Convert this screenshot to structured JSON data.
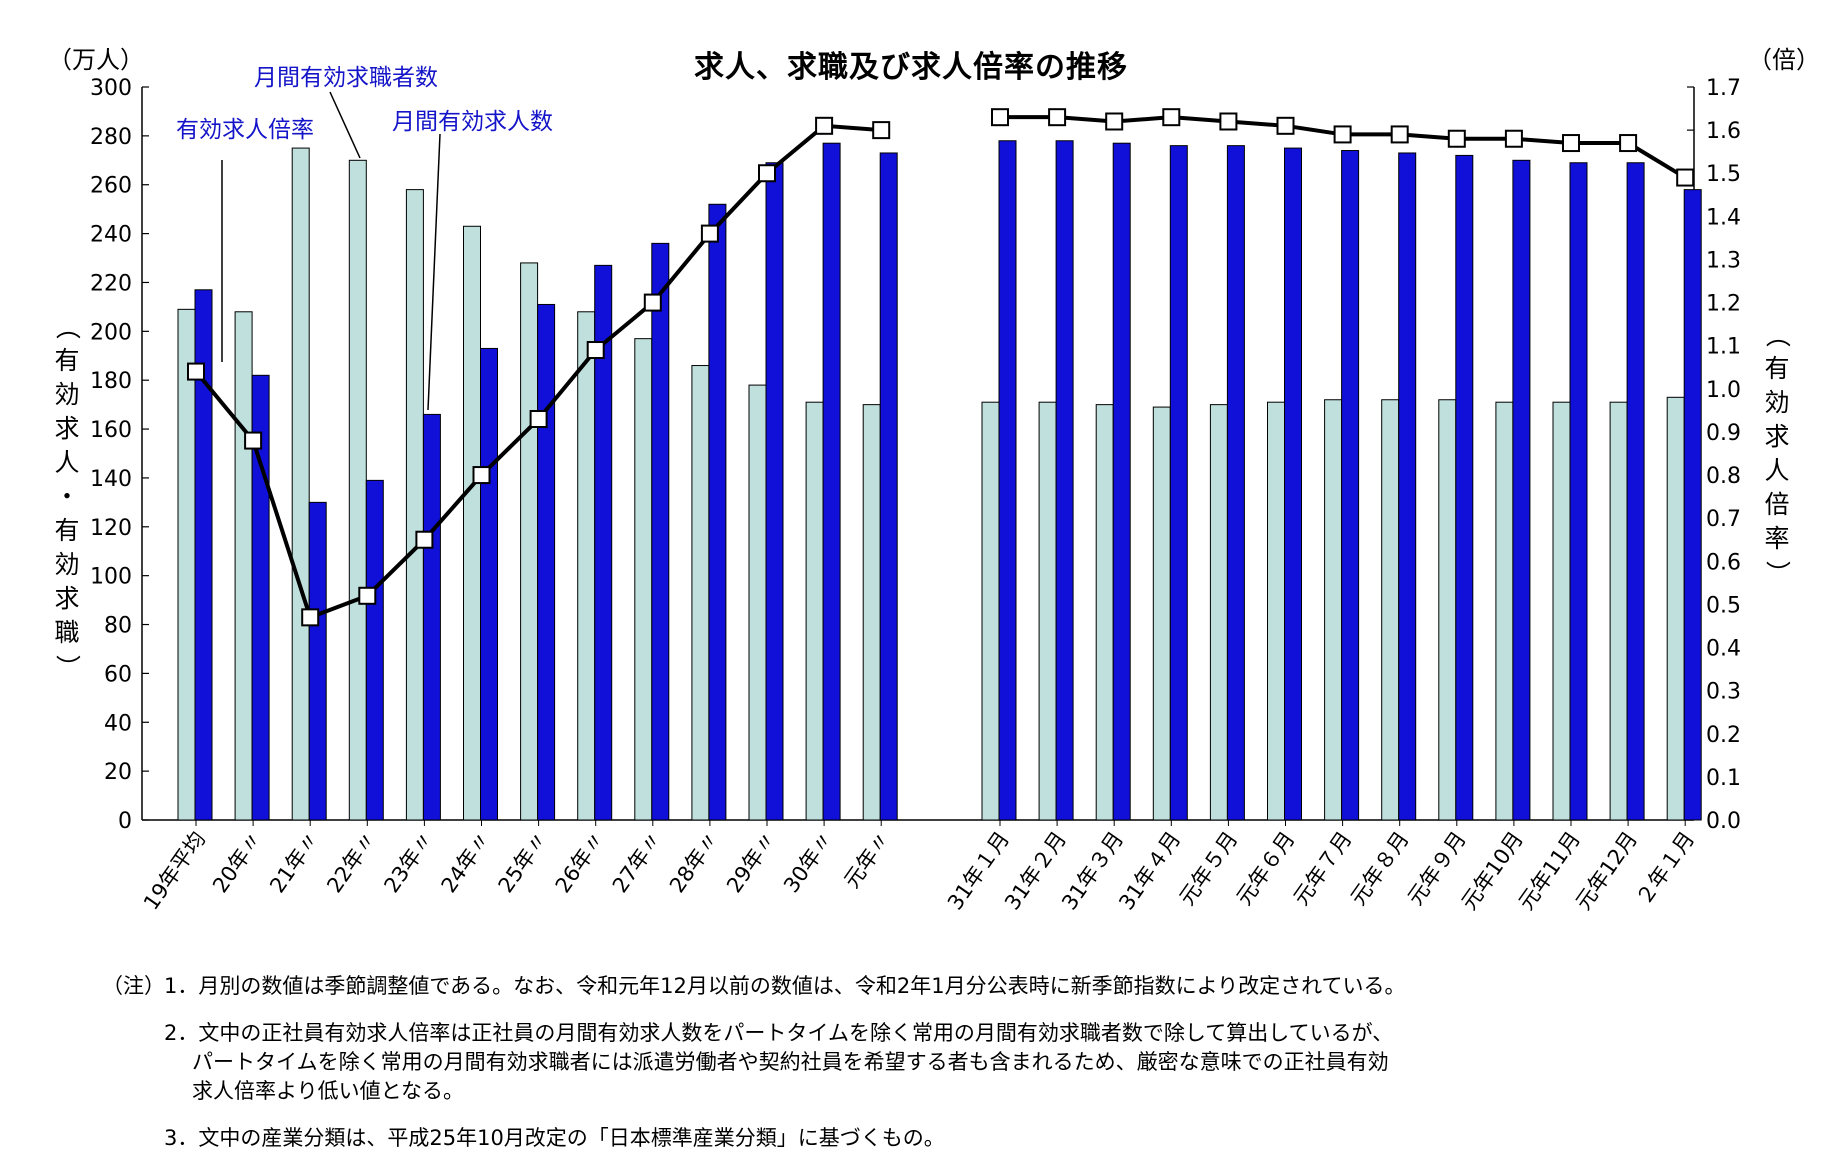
{
  "title": "求人、求職及び求人倍率の推移",
  "left_unit": "（万人）",
  "right_unit": "（倍）",
  "left_axis_label": "（有効求人・有効求職）",
  "right_axis_label": "（有効求人倍率）",
  "callouts": {
    "ratio": "有効求人倍率",
    "seekers": "月間有効求職者数",
    "openings": "月間有効求人数"
  },
  "colors": {
    "seekers_bar": "#bfe0dc",
    "openings_bar": "#1010d8",
    "ratio_line": "#000000",
    "callout_text": "#1414c8"
  },
  "chart_data": {
    "type": "bar",
    "categories": [
      "19年平均",
      "20年〃",
      "21年〃",
      "22年〃",
      "23年〃",
      "24年〃",
      "25年〃",
      "26年〃",
      "27年〃",
      "28年〃",
      "29年〃",
      "30年〃",
      "元年〃",
      "31年１月",
      "31年２月",
      "31年３月",
      "31年４月",
      "元年５月",
      "元年６月",
      "元年７月",
      "元年８月",
      "元年９月",
      "元年10月",
      "元年11月",
      "元年12月",
      "２年１月"
    ],
    "series": [
      {
        "name": "月間有効求職者数",
        "kind": "bar",
        "values": [
          209,
          208,
          275,
          270,
          258,
          243,
          228,
          208,
          197,
          186,
          178,
          171,
          170,
          171,
          171,
          170,
          169,
          170,
          171,
          172,
          172,
          172,
          171,
          171,
          171,
          173
        ]
      },
      {
        "name": "月間有効求人数",
        "kind": "bar",
        "values": [
          217,
          182,
          130,
          139,
          166,
          193,
          211,
          227,
          236,
          252,
          269,
          277,
          273,
          278,
          278,
          277,
          276,
          276,
          275,
          274,
          273,
          272,
          270,
          269,
          269,
          258
        ]
      },
      {
        "name": "有効求人倍率",
        "kind": "line",
        "axis": "right",
        "values": [
          1.04,
          0.88,
          0.47,
          0.52,
          0.65,
          0.8,
          0.93,
          1.09,
          1.2,
          1.36,
          1.5,
          1.61,
          1.6,
          1.63,
          1.63,
          1.62,
          1.63,
          1.62,
          1.61,
          1.59,
          1.59,
          1.58,
          1.58,
          1.57,
          1.57,
          1.49
        ]
      }
    ],
    "left_axis": {
      "ylim": [
        0,
        300
      ],
      "ticks": [
        "0",
        "20",
        "40",
        "60",
        "80",
        "100",
        "120",
        "140",
        "160",
        "180",
        "200",
        "220",
        "240",
        "260",
        "280",
        "300"
      ]
    },
    "right_axis": {
      "ylim": [
        0,
        1.7
      ],
      "ticks": [
        "0.0",
        "0.1",
        "0.2",
        "0.3",
        "0.4",
        "0.5",
        "0.6",
        "0.7",
        "0.8",
        "0.9",
        "1.0",
        "1.1",
        "1.2",
        "1.3",
        "1.4",
        "1.5",
        "1.6",
        "1.7"
      ]
    },
    "grid": false,
    "line_break_after": "元年〃"
  },
  "notes": {
    "prefix": "（注）",
    "n1": "1．月別の数値は季節調整値である。なお、令和元年12月以前の数値は、令和2年1月分公表時に新季節指数により改定されている。",
    "n2a": "2．文中の正社員有効求人倍率は正社員の月間有効求人数をパートタイムを除く常用の月間有効求職者数で除して算出しているが、",
    "n2b": "パートタイムを除く常用の月間有効求職者には派遣労働者や契約社員を希望する者も含まれるため、厳密な意味での正社員有効",
    "n2c": "求人倍率より低い値となる。",
    "n3": "3．文中の産業分類は、平成25年10月改定の「日本標準産業分類」に基づくもの。"
  }
}
